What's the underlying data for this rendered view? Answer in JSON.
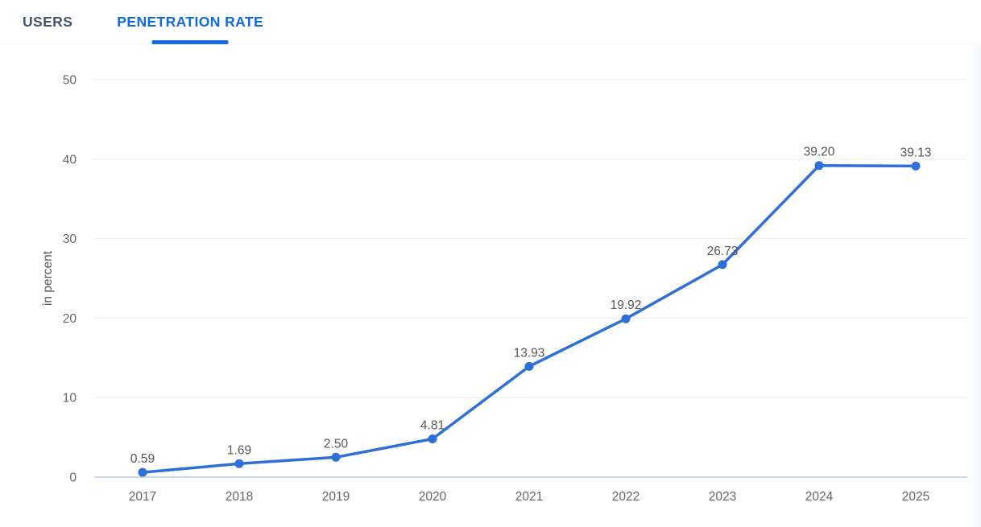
{
  "tabs": [
    {
      "label": "USERS",
      "active": false
    },
    {
      "label": "PENETRATION RATE",
      "active": true
    }
  ],
  "chart_data": {
    "type": "line",
    "title": "",
    "xlabel": "",
    "ylabel": "in percent",
    "categories": [
      "2017",
      "2018",
      "2019",
      "2020",
      "2021",
      "2022",
      "2023",
      "2024",
      "2025"
    ],
    "values": [
      0.59,
      1.69,
      2.5,
      4.81,
      13.93,
      19.92,
      26.73,
      39.2,
      39.13
    ],
    "point_labels": [
      "0.59",
      "1.69",
      "2.50",
      "4.81",
      "13.93",
      "19.92",
      "26.73",
      "39.20",
      "39.13"
    ],
    "yticks": [
      0,
      10,
      20,
      30,
      40,
      50
    ],
    "ylim": [
      0,
      50
    ],
    "grid": true,
    "legend_position": "none",
    "colors": {
      "line": "#2e6fd8",
      "point": "#2e6fd8",
      "grid": "#ececec",
      "baseline": "#ccd7e8",
      "tick_text": "#666666",
      "value_text": "#575757",
      "axis_title_text": "#595959",
      "tab_active": "#0d6be0",
      "tab_inactive": "#44546b",
      "tab_underline": "#1668e3"
    }
  }
}
